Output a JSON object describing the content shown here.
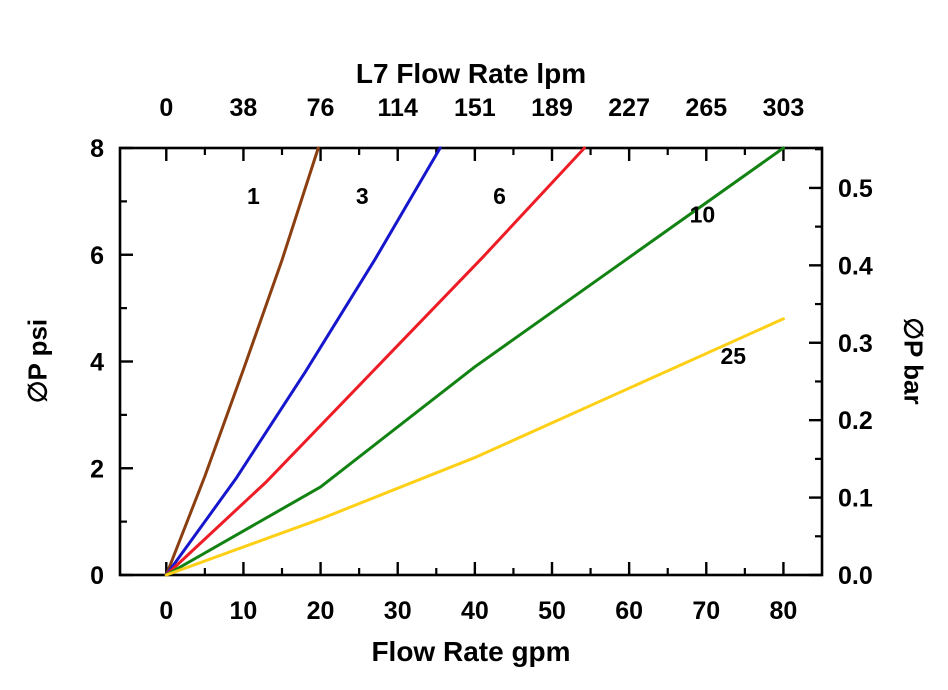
{
  "chart_data": {
    "type": "line",
    "title_top": "L7 Flow Rate lpm",
    "xlabel_bottom": "Flow Rate gpm",
    "ylabel_left": "∅P psi",
    "ylabel_right": "∅P bar",
    "axis_color": "#000000",
    "background_color": "#ffffff",
    "grid": false,
    "legend": "inline-labels",
    "x_axis_bottom": {
      "unit": "gpm",
      "range": [
        -6,
        85
      ],
      "ticks": [
        0,
        10,
        20,
        30,
        40,
        50,
        60,
        70,
        80
      ],
      "minor_step": 5
    },
    "x_axis_top": {
      "unit": "lpm",
      "tick_labels": [
        "0",
        "38",
        "76",
        "114",
        "151",
        "189",
        "227",
        "265",
        "303"
      ]
    },
    "y_axis_left": {
      "unit": "psi",
      "range": [
        0,
        8
      ],
      "ticks": [
        0,
        2,
        4,
        6,
        8
      ],
      "minor_step": 1
    },
    "y_axis_right": {
      "unit": "bar",
      "psi_per_bar": 14.5038,
      "tick_labels": [
        "0.0",
        "0.1",
        "0.2",
        "0.3",
        "0.4",
        "0.5"
      ],
      "minor_step": 0.05
    },
    "series": [
      {
        "name": "1",
        "color": "#8b3e0f",
        "points": [
          [
            0,
            0
          ],
          [
            5,
            1.85
          ],
          [
            10,
            3.85
          ],
          [
            15,
            5.9
          ],
          [
            19.7,
            8
          ]
        ],
        "label_at": [
          11.3,
          6.95
        ]
      },
      {
        "name": "3",
        "color": "#1616cd",
        "points": [
          [
            0,
            0
          ],
          [
            9,
            1.8
          ],
          [
            18,
            3.8
          ],
          [
            27,
            5.9
          ],
          [
            35.5,
            8
          ]
        ],
        "label_at": [
          25.4,
          6.95
        ]
      },
      {
        "name": "6",
        "color": "#ee1c25",
        "points": [
          [
            0,
            0
          ],
          [
            13,
            1.75
          ],
          [
            27,
            3.85
          ],
          [
            41,
            5.95
          ],
          [
            54.2,
            8
          ]
        ],
        "label_at": [
          43.2,
          6.95
        ]
      },
      {
        "name": "10",
        "color": "#128312",
        "points": [
          [
            0,
            0
          ],
          [
            20,
            1.65
          ],
          [
            40,
            3.9
          ],
          [
            60,
            5.95
          ],
          [
            80,
            8
          ]
        ],
        "label_at": [
          69.5,
          6.6
        ]
      },
      {
        "name": "25",
        "color": "#fdd017",
        "points": [
          [
            0,
            0
          ],
          [
            20,
            1.05
          ],
          [
            40,
            2.2
          ],
          [
            60,
            3.5
          ],
          [
            80,
            4.8
          ]
        ],
        "label_at": [
          73.5,
          3.95
        ]
      }
    ]
  }
}
